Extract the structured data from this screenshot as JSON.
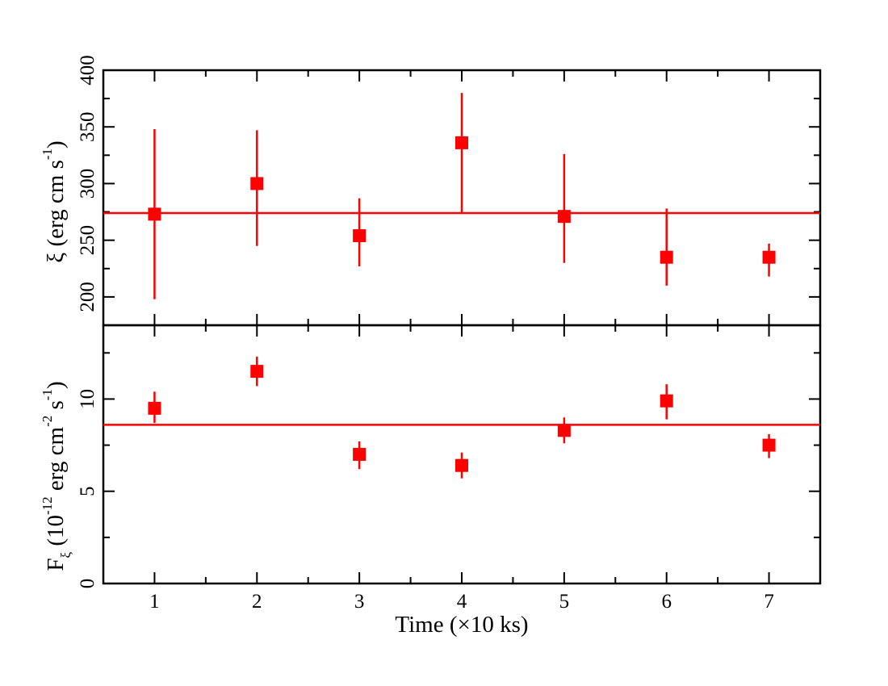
{
  "colors": {
    "marker": "#ff0000",
    "axes": "#000000",
    "background": "#ffffff"
  },
  "chart_data": [
    {
      "type": "scatter",
      "panel": "top",
      "ylabel": {
        "sym": "ξ",
        "text": " (erg cm s",
        "sup": "-1",
        "close": ")"
      },
      "ylim": [
        175,
        400
      ],
      "yticks": [
        200,
        250,
        300,
        350,
        400
      ],
      "xlim": [
        0.5,
        7.5
      ],
      "grid": false,
      "points": [
        {
          "x": 1,
          "y": 273,
          "lo": 198,
          "hi": 348
        },
        {
          "x": 2,
          "y": 300,
          "lo": 245,
          "hi": 347
        },
        {
          "x": 3,
          "y": 254,
          "lo": 227,
          "hi": 287
        },
        {
          "x": 4,
          "y": 336,
          "lo": 274,
          "hi": 380
        },
        {
          "x": 5,
          "y": 271,
          "lo": 230,
          "hi": 326
        },
        {
          "x": 6,
          "y": 235,
          "lo": 210,
          "hi": 278
        },
        {
          "x": 7,
          "y": 235,
          "lo": 218,
          "hi": 247
        }
      ],
      "hline": 274
    },
    {
      "type": "scatter",
      "panel": "bottom",
      "ylabel": {
        "sym": "F",
        "sub": "ξ",
        "pre": " (10",
        "sup1": "-12",
        "mid": " erg cm",
        "sup2": "-2",
        "mid2": " s",
        "sup3": "-1",
        "close": ")"
      },
      "ylim": [
        0,
        14
      ],
      "yticks": [
        0,
        5,
        10
      ],
      "xlim": [
        0.5,
        7.5
      ],
      "xticks": [
        1,
        2,
        3,
        4,
        5,
        6,
        7
      ],
      "xlabel": "Time (×10 ks)",
      "grid": false,
      "points": [
        {
          "x": 1,
          "y": 9.5,
          "lo": 8.7,
          "hi": 10.4
        },
        {
          "x": 2,
          "y": 11.5,
          "lo": 10.7,
          "hi": 12.3
        },
        {
          "x": 3,
          "y": 7.0,
          "lo": 6.2,
          "hi": 7.7
        },
        {
          "x": 4,
          "y": 6.4,
          "lo": 5.7,
          "hi": 7.1
        },
        {
          "x": 5,
          "y": 8.3,
          "lo": 7.6,
          "hi": 9.0
        },
        {
          "x": 6,
          "y": 9.9,
          "lo": 8.9,
          "hi": 10.8
        },
        {
          "x": 7,
          "y": 7.5,
          "lo": 6.8,
          "hi": 8.1
        }
      ],
      "hline": 8.6
    }
  ]
}
